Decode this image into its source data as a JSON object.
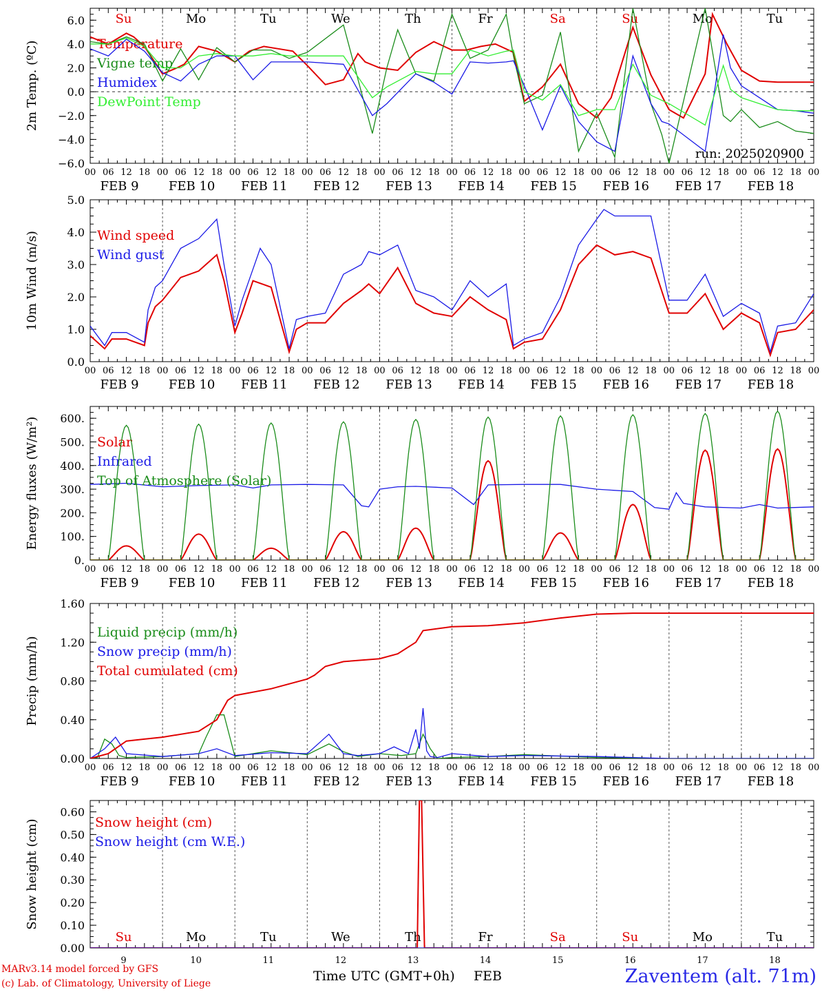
{
  "footer": {
    "model": "MARv3.14 model forced by GFS",
    "credit": "(c) Lab. of Climatology, University of Liege",
    "time_label": "Time UTC (GMT+0h)",
    "month": "FEB",
    "station": "Zaventem (alt. 71m)"
  },
  "colors": {
    "red": "#e00000",
    "green": "#1a8c1a",
    "blue": "#1a1ae6",
    "lightgreen": "#33ee33",
    "black": "#000000"
  },
  "time_axis": {
    "hour_ticks": [
      "00",
      "06",
      "12",
      "18"
    ],
    "final_tick": "00",
    "dates": [
      "FEB  9",
      "FEB 10",
      "FEB 11",
      "FEB 12",
      "FEB 13",
      "FEB 14",
      "FEB 15",
      "FEB 16",
      "FEB 17",
      "FEB 18"
    ],
    "day_numbers": [
      "9",
      "10",
      "11",
      "12",
      "13",
      "14",
      "15",
      "16",
      "17",
      "18"
    ],
    "weekdays": [
      "Su",
      "Mo",
      "Tu",
      "We",
      "Th",
      "Fr",
      "Sa",
      "Su",
      "Mo",
      "Tu"
    ],
    "weekday_colors": [
      "red",
      "black",
      "black",
      "black",
      "black",
      "black",
      "red",
      "red",
      "black",
      "black"
    ]
  },
  "chart_data": [
    {
      "type": "line",
      "panel": "temperature",
      "ylabel": "2m Temp. (ºC)",
      "ylim": [
        -6,
        7
      ],
      "yticks": [
        "6.0",
        "4.0",
        "2.0",
        "0.0",
        "−2.0",
        "−4.0",
        "−6.0"
      ],
      "ytick_values": [
        6,
        4,
        2,
        0,
        -2,
        -4,
        -6
      ],
      "zero_line": true,
      "annotation": "run: 2025020900",
      "x_unit": "days since FEB 9 00 UTC",
      "series": [
        {
          "name": "Temperature",
          "color": "red",
          "x": [
            0,
            0.25,
            0.5,
            0.6,
            0.75,
            1.0,
            1.2,
            1.3,
            1.5,
            1.75,
            2.0,
            2.2,
            2.4,
            2.6,
            2.8,
            3.0,
            3.25,
            3.5,
            3.7,
            3.8,
            4.0,
            4.25,
            4.5,
            4.75,
            5.0,
            5.2,
            5.4,
            5.6,
            5.85,
            6.0,
            6.25,
            6.5,
            6.75,
            7.0,
            7.2,
            7.5,
            7.75,
            8.0,
            8.2,
            8.5,
            8.6,
            8.8,
            9.0,
            9.25,
            9.5,
            9.7,
            9.9,
            10.0
          ],
          "y": [
            4.6,
            4.0,
            4.9,
            4.6,
            3.8,
            1.5,
            2.0,
            2.3,
            3.8,
            3.4,
            2.5,
            3.4,
            3.8,
            3.6,
            3.4,
            2.2,
            0.6,
            1.0,
            3.2,
            2.5,
            2.0,
            1.8,
            3.3,
            4.2,
            3.5,
            3.5,
            3.8,
            4.0,
            3.3,
            -0.8,
            0.4,
            2.3,
            -1.0,
            -2.2,
            -0.5,
            5.4,
            1.4,
            -1.5,
            -2.2,
            1.5,
            6.5,
            4.0,
            1.8,
            0.9,
            0.8,
            0.8,
            0.8,
            0.8
          ]
        },
        {
          "name": "Vigne temp",
          "color": "green",
          "x": [
            0,
            0.25,
            0.5,
            0.75,
            1.0,
            1.25,
            1.5,
            1.75,
            2.0,
            2.25,
            2.5,
            2.75,
            3.0,
            3.5,
            3.9,
            4.1,
            4.25,
            4.5,
            4.75,
            5.0,
            5.25,
            5.5,
            5.75,
            5.85,
            6.0,
            6.25,
            6.5,
            6.75,
            7.0,
            7.25,
            7.5,
            7.75,
            7.9,
            8.0,
            8.5,
            8.75,
            8.85,
            9.0,
            9.25,
            9.5,
            9.75,
            10.0
          ],
          "y": [
            4.2,
            4.0,
            4.6,
            4.0,
            0.9,
            3.6,
            1.0,
            3.7,
            2.5,
            3.5,
            3.5,
            2.8,
            3.3,
            5.6,
            -3.5,
            2.0,
            5.2,
            1.5,
            0.9,
            6.5,
            2.8,
            3.5,
            6.5,
            3.0,
            -1.0,
            -0.3,
            5.0,
            -5.0,
            -1.8,
            -5.5,
            7.0,
            -1.0,
            -3.6,
            -6.0,
            7.0,
            -2.0,
            -2.5,
            -1.5,
            -3.0,
            -2.5,
            -3.3,
            -3.5
          ]
        },
        {
          "name": "Humidex",
          "color": "blue",
          "x": [
            0,
            0.25,
            0.5,
            0.75,
            1.0,
            1.25,
            1.5,
            1.75,
            2.0,
            2.25,
            2.5,
            2.75,
            3.0,
            3.5,
            3.9,
            4.1,
            4.5,
            4.75,
            5.0,
            5.25,
            5.5,
            5.75,
            5.85,
            6.0,
            6.25,
            6.5,
            6.75,
            7.0,
            7.25,
            7.5,
            7.75,
            7.9,
            8.0,
            8.5,
            8.75,
            8.85,
            9.0,
            9.25,
            9.5,
            9.75,
            10.0
          ],
          "y": [
            3.6,
            3.0,
            4.4,
            3.4,
            1.6,
            0.9,
            2.3,
            3.0,
            3.0,
            1.0,
            2.5,
            2.5,
            2.5,
            2.3,
            -2.0,
            -1.0,
            1.5,
            0.8,
            -0.2,
            2.5,
            2.4,
            2.5,
            2.6,
            0.5,
            -3.2,
            0.5,
            -2.5,
            -4.2,
            -5.0,
            3.0,
            -1.0,
            -2.5,
            -2.7,
            -5.0,
            4.8,
            2.0,
            0.5,
            -0.5,
            -1.5,
            -1.6,
            -1.8
          ]
        },
        {
          "name": "DewPoint Temp",
          "color": "lightgreen",
          "x": [
            0,
            0.25,
            0.5,
            0.75,
            1.0,
            1.25,
            1.5,
            1.75,
            2.0,
            2.25,
            2.5,
            2.75,
            3.0,
            3.5,
            3.9,
            4.1,
            4.5,
            4.75,
            5.0,
            5.25,
            5.5,
            5.75,
            5.85,
            6.0,
            6.25,
            6.5,
            6.75,
            7.0,
            7.25,
            7.5,
            7.75,
            8.0,
            8.5,
            8.75,
            8.85,
            9.0,
            9.25,
            9.5,
            9.75,
            10.0
          ],
          "y": [
            4.0,
            4.0,
            4.5,
            3.8,
            2.0,
            2.0,
            3.0,
            3.2,
            3.0,
            3.0,
            3.2,
            3.0,
            3.0,
            3.0,
            -0.5,
            0.4,
            1.7,
            1.5,
            1.5,
            3.5,
            3.0,
            3.4,
            3.5,
            0.0,
            -0.7,
            0.6,
            -2.0,
            -1.5,
            -1.5,
            2.3,
            -0.3,
            -1.0,
            -2.8,
            2.2,
            0.2,
            -0.5,
            -1.0,
            -1.5,
            -1.6,
            -1.6
          ]
        }
      ]
    },
    {
      "type": "line",
      "panel": "wind",
      "ylabel": "10m Wind (m/s)",
      "ylim": [
        0,
        5
      ],
      "yticks": [
        "5.0",
        "4.0",
        "3.0",
        "2.0",
        "1.0",
        "0.0"
      ],
      "ytick_values": [
        5,
        4,
        3,
        2,
        1,
        0
      ],
      "x_unit": "days since FEB 9 00 UTC",
      "series": [
        {
          "name": "Wind speed",
          "color": "red",
          "x": [
            0,
            0.2,
            0.3,
            0.5,
            0.75,
            0.8,
            0.9,
            1.0,
            1.25,
            1.5,
            1.75,
            1.85,
            2.0,
            2.1,
            2.25,
            2.5,
            2.75,
            2.85,
            3.0,
            3.25,
            3.5,
            3.75,
            3.85,
            4.0,
            4.25,
            4.5,
            4.75,
            5.0,
            5.25,
            5.5,
            5.75,
            5.85,
            6.0,
            6.25,
            6.5,
            6.75,
            7.0,
            7.25,
            7.5,
            7.75,
            8.0,
            8.25,
            8.5,
            8.75,
            9.0,
            9.25,
            9.4,
            9.5,
            9.75,
            10.0
          ],
          "y": [
            0.8,
            0.4,
            0.7,
            0.7,
            0.5,
            1.2,
            1.7,
            1.9,
            2.6,
            2.8,
            3.3,
            2.5,
            0.9,
            1.5,
            2.5,
            2.3,
            0.3,
            1.0,
            1.2,
            1.2,
            1.8,
            2.2,
            2.4,
            2.1,
            2.9,
            1.8,
            1.5,
            1.4,
            2.0,
            1.6,
            1.3,
            0.4,
            0.6,
            0.7,
            1.6,
            3.0,
            3.6,
            3.3,
            3.4,
            3.2,
            1.5,
            1.5,
            2.1,
            1.0,
            1.5,
            1.2,
            0.2,
            0.9,
            1.0,
            1.6
          ]
        },
        {
          "name": "Wind gust",
          "color": "blue",
          "x": [
            0,
            0.2,
            0.3,
            0.5,
            0.75,
            0.8,
            0.9,
            1.0,
            1.25,
            1.5,
            1.75,
            1.85,
            2.0,
            2.1,
            2.35,
            2.5,
            2.75,
            2.85,
            3.0,
            3.25,
            3.5,
            3.75,
            3.85,
            4.0,
            4.25,
            4.5,
            4.75,
            5.0,
            5.25,
            5.5,
            5.75,
            5.85,
            6.0,
            6.25,
            6.5,
            6.75,
            7.0,
            7.1,
            7.25,
            7.5,
            7.75,
            8.0,
            8.25,
            8.5,
            8.75,
            9.0,
            9.25,
            9.4,
            9.5,
            9.75,
            10.0
          ],
          "y": [
            1.1,
            0.5,
            0.9,
            0.9,
            0.6,
            1.6,
            2.3,
            2.5,
            3.5,
            3.8,
            4.4,
            3.0,
            1.1,
            1.9,
            3.5,
            3.0,
            0.4,
            1.3,
            1.4,
            1.5,
            2.7,
            3.0,
            3.4,
            3.3,
            3.6,
            2.2,
            2.0,
            1.6,
            2.5,
            2.0,
            2.4,
            0.5,
            0.7,
            0.9,
            2.0,
            3.6,
            4.4,
            4.7,
            4.5,
            4.5,
            4.5,
            1.9,
            1.9,
            2.7,
            1.4,
            1.8,
            1.5,
            0.3,
            1.1,
            1.2,
            2.1
          ]
        }
      ]
    },
    {
      "type": "line",
      "panel": "energy",
      "ylabel": "Energy fluxes (W/m²)",
      "ylim": [
        0,
        650
      ],
      "yticks": [
        "600.",
        "500.",
        "400.",
        "300.",
        "200.",
        "100.",
        "0."
      ],
      "ytick_values": [
        600,
        500,
        400,
        300,
        200,
        100,
        0
      ],
      "x_unit": "days since FEB 9 00 UTC",
      "toa_peaks": [
        570,
        575,
        580,
        585,
        595,
        605,
        610,
        615,
        620,
        630
      ],
      "solar_peaks": [
        60,
        110,
        50,
        120,
        135,
        420,
        115,
        235,
        465,
        470
      ],
      "series": [
        {
          "name": "Solar",
          "color": "red"
        },
        {
          "name": "Infrared",
          "color": "blue",
          "x": [
            0,
            0.5,
            1.0,
            1.5,
            2.0,
            2.25,
            2.5,
            3.0,
            3.5,
            3.75,
            3.85,
            4.0,
            4.25,
            4.5,
            5.0,
            5.3,
            5.5,
            6.0,
            6.5,
            7.0,
            7.5,
            7.8,
            8.0,
            8.1,
            8.2,
            8.5,
            9.0,
            9.25,
            9.5,
            10.0
          ],
          "y": [
            320,
            325,
            310,
            315,
            318,
            305,
            318,
            320,
            318,
            230,
            225,
            300,
            310,
            312,
            305,
            235,
            318,
            320,
            320,
            300,
            290,
            222,
            215,
            285,
            240,
            225,
            220,
            235,
            220,
            225
          ]
        },
        {
          "name": "Top of Atmosphere (Solar)",
          "color": "green"
        }
      ]
    },
    {
      "type": "line",
      "panel": "precip",
      "ylabel": "Precip (mm/h)",
      "ylim": [
        0,
        1.6
      ],
      "yticks": [
        "1.60",
        "1.20",
        "0.80",
        "0.40",
        "0.00"
      ],
      "ytick_values": [
        1.6,
        1.2,
        0.8,
        0.4,
        0
      ],
      "x_unit": "days since FEB 9 00 UTC",
      "series": [
        {
          "name": "Liquid precip (mm/h)",
          "color": "green",
          "x": [
            0,
            0.1,
            0.2,
            0.3,
            0.4,
            0.5,
            1.0,
            1.5,
            1.6,
            1.75,
            1.85,
            2.0,
            2.5,
            3.0,
            3.3,
            3.5,
            3.7,
            4.0,
            4.3,
            4.5,
            4.6,
            4.7,
            4.8,
            5.0,
            5.5,
            6.0,
            7.0,
            8.0,
            10.0
          ],
          "y": [
            0,
            0.01,
            0.2,
            0.15,
            0.03,
            0.01,
            0.02,
            0.05,
            0.22,
            0.45,
            0.45,
            0.02,
            0.08,
            0.04,
            0.15,
            0.07,
            0.02,
            0.05,
            0.03,
            0.05,
            0.25,
            0.1,
            0.0,
            0.01,
            0.02,
            0.04,
            0.01,
            0.0,
            0
          ]
        },
        {
          "name": "Snow precip (mm/h)",
          "color": "blue",
          "x": [
            0,
            0.2,
            0.35,
            0.5,
            1.0,
            1.5,
            1.75,
            2.0,
            2.5,
            3.0,
            3.3,
            3.5,
            3.7,
            4.0,
            4.2,
            4.4,
            4.5,
            4.55,
            4.6,
            4.65,
            4.7,
            4.8,
            5.0,
            5.5,
            6.0,
            7.0,
            8.0,
            10.0
          ],
          "y": [
            0,
            0.1,
            0.22,
            0.05,
            0.02,
            0.05,
            0.1,
            0.03,
            0.06,
            0.05,
            0.25,
            0.05,
            0.03,
            0.05,
            0.12,
            0.05,
            0.3,
            0.1,
            0.52,
            0.08,
            0.02,
            0.01,
            0.05,
            0.02,
            0.03,
            0.02,
            0.0,
            0
          ]
        },
        {
          "name": "Total cumulated (cm)",
          "color": "red",
          "x": [
            0,
            0.25,
            0.5,
            0.75,
            1.0,
            1.5,
            1.75,
            1.9,
            2.0,
            2.5,
            3.0,
            3.1,
            3.25,
            3.5,
            4.0,
            4.25,
            4.5,
            4.6,
            4.7,
            5.0,
            5.5,
            6.0,
            6.5,
            7.0,
            7.5,
            8.0,
            9.0,
            10.0
          ],
          "y": [
            0,
            0.05,
            0.18,
            0.2,
            0.22,
            0.28,
            0.4,
            0.6,
            0.65,
            0.72,
            0.82,
            0.86,
            0.95,
            1.0,
            1.03,
            1.08,
            1.2,
            1.32,
            1.33,
            1.36,
            1.37,
            1.4,
            1.45,
            1.49,
            1.5,
            1.5,
            1.5,
            1.5
          ]
        }
      ]
    },
    {
      "type": "line",
      "panel": "snow",
      "ylabel": "Snow height (cm)",
      "ylim": [
        0,
        0.65
      ],
      "yticks": [
        "0.60",
        "0.50",
        "0.40",
        "0.30",
        "0.20",
        "0.10",
        "0.00"
      ],
      "ytick_values": [
        0.6,
        0.5,
        0.4,
        0.3,
        0.2,
        0.1,
        0
      ],
      "x_unit": "days since FEB 9 00 UTC",
      "series": [
        {
          "name": "Snow height (cm)",
          "color": "red",
          "x": [
            0,
            4.52,
            4.55,
            4.58,
            4.62,
            10.0
          ],
          "y": [
            0,
            0,
            0.65,
            0.65,
            0,
            0
          ]
        },
        {
          "name": "Snow height (cm W.E.)",
          "color": "blue",
          "x": [
            0,
            10.0
          ],
          "y": [
            0,
            0
          ]
        }
      ]
    }
  ]
}
